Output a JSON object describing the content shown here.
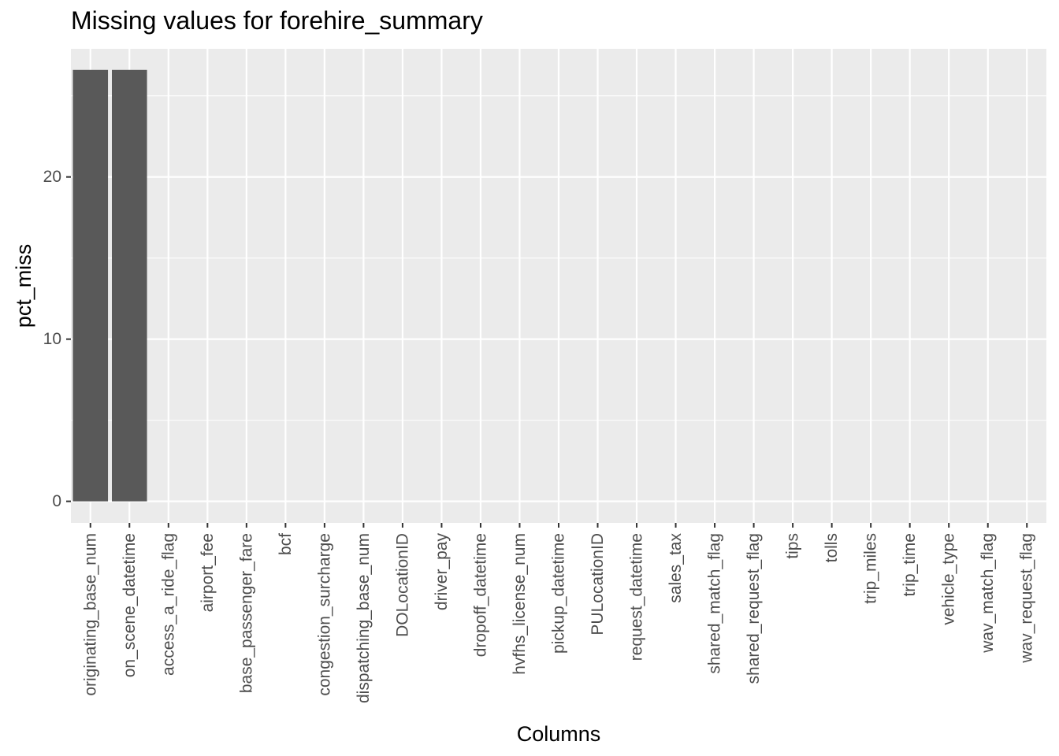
{
  "chart_data": {
    "type": "bar",
    "title": "Missing values for forehire_summary",
    "xlabel": "Columns",
    "ylabel": "pct_miss",
    "categories": [
      "originating_base_num",
      "on_scene_datetime",
      "access_a_ride_flag",
      "airport_fee",
      "base_passenger_fare",
      "bcf",
      "congestion_surcharge",
      "dispatching_base_num",
      "DOLocationID",
      "driver_pay",
      "dropoff_datetime",
      "hvfhs_license_num",
      "pickup_datetime",
      "PULocationID",
      "request_datetime",
      "sales_tax",
      "shared_match_flag",
      "shared_request_flag",
      "tips",
      "tolls",
      "trip_miles",
      "trip_time",
      "vehicle_type",
      "wav_match_flag",
      "wav_request_flag"
    ],
    "values": [
      26.6,
      26.6,
      0,
      0,
      0,
      0,
      0,
      0,
      0,
      0,
      0,
      0,
      0,
      0,
      0,
      0,
      0,
      0,
      0,
      0,
      0,
      0,
      0,
      0,
      0
    ],
    "yticks": [
      0,
      10,
      20
    ],
    "ylim": [
      -1.33,
      27.9
    ],
    "grid": true,
    "bar_color": "#595959",
    "panel_color": "#EBEBEB",
    "grid_color": "#FFFFFF",
    "tick_label_color": "#4D4D4D"
  }
}
